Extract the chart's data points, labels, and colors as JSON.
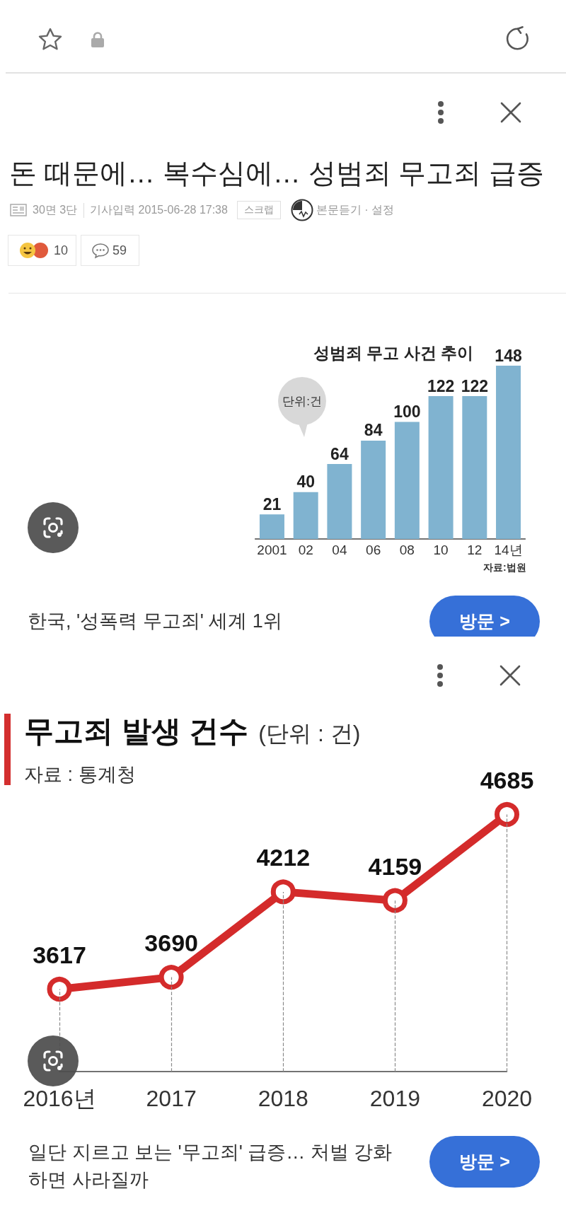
{
  "chart_data": [
    {
      "type": "bar",
      "title": "성범죄 무고 사건 추이",
      "categories": [
        "2001",
        "02",
        "04",
        "06",
        "08",
        "10",
        "12",
        "14년"
      ],
      "values": [
        21,
        40,
        64,
        84,
        100,
        122,
        122,
        148
      ],
      "color": "#80b3d0",
      "data_labels": true,
      "tick_labels": "x",
      "annotations": [
        "돈 때문에… 복수심에… 성범죄 무고죄 급증",
        "30면 3단",
        "기사입력 2015-06-28 17:38",
        "스크랩",
        "본문듣기 · 설정",
        "10",
        "59",
        "단위:건",
        "자료:법원",
        "한국, '성폭력 무고죄' 세계 1위",
        "방문 >"
      ]
    },
    {
      "type": "line",
      "title": "무고죄 발생 건수",
      "subtitle": "(단위 : 건)",
      "categories": [
        "2016년",
        "2017",
        "2018",
        "2019",
        "2020"
      ],
      "values": [
        3617,
        3690,
        4212,
        4159,
        4685
      ],
      "color": "#d42b2b",
      "tick_labels": "x",
      "grid": "x",
      "marker": "circle",
      "data_labels": true,
      "annotations": [
        "자료 : 통계청",
        "일단 지르고 보는 '무고죄' 급증… 처벌 강화하면 사라질까",
        "방문 >"
      ]
    }
  ]
}
